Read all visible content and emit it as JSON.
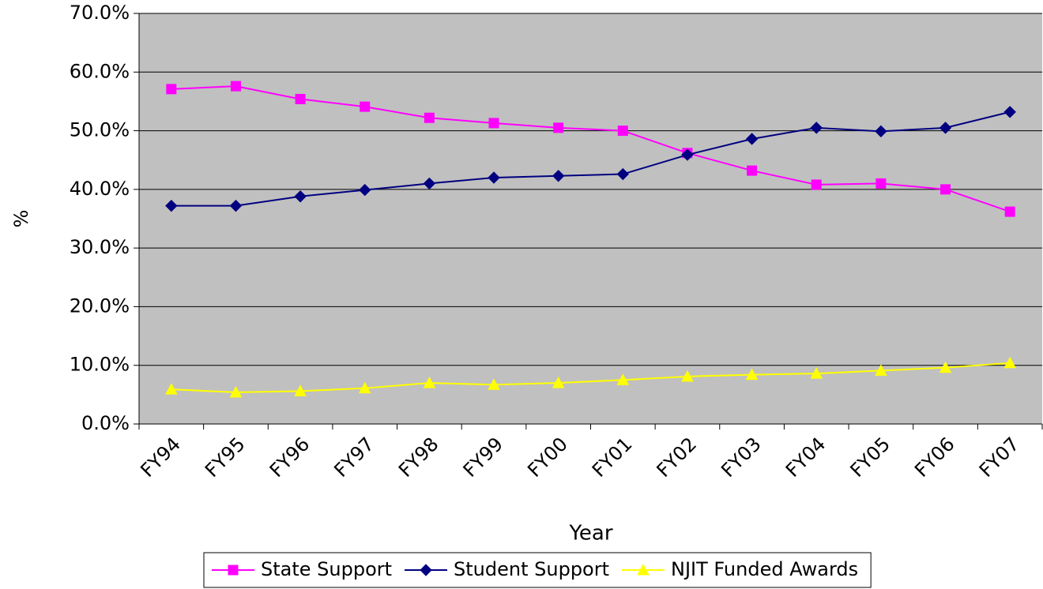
{
  "chart_data": {
    "type": "line",
    "categories": [
      "FY94",
      "FY95",
      "FY96",
      "FY97",
      "FY98",
      "FY99",
      "FY00",
      "FY01",
      "FY02",
      "FY03",
      "FY04",
      "FY05",
      "FY06",
      "FY07"
    ],
    "series": [
      {
        "name": "State Support",
        "color": "#ff00ff",
        "marker": "square",
        "values": [
          57.1,
          57.6,
          55.4,
          54.1,
          52.2,
          51.3,
          50.5,
          50.0,
          46.2,
          43.2,
          40.8,
          41.0,
          40.0,
          36.2
        ]
      },
      {
        "name": "Student Support",
        "color": "#000080",
        "marker": "diamond",
        "values": [
          37.2,
          37.2,
          38.8,
          39.9,
          41.0,
          42.0,
          42.3,
          42.6,
          45.9,
          48.6,
          50.5,
          49.9,
          50.5,
          53.2
        ]
      },
      {
        "name": "NJIT Funded Awards",
        "color": "#ffff00",
        "marker": "triangle",
        "values": [
          5.9,
          5.4,
          5.6,
          6.1,
          7.0,
          6.7,
          7.0,
          7.5,
          8.1,
          8.4,
          8.6,
          9.1,
          9.6,
          10.4
        ]
      }
    ],
    "x_label": "Year",
    "y_label": "%",
    "ylim": [
      0,
      70
    ],
    "yticks": [
      {
        "value": 0,
        "label": "0.0%"
      },
      {
        "value": 10,
        "label": "10.0%"
      },
      {
        "value": 20,
        "label": "20.0%"
      },
      {
        "value": 30,
        "label": "30.0%"
      },
      {
        "value": 40,
        "label": "40.0%"
      },
      {
        "value": 50,
        "label": "50.0%"
      },
      {
        "value": 60,
        "label": "60.0%"
      },
      {
        "value": 70,
        "label": "70.0%"
      }
    ],
    "grid": true,
    "plot_background": "#c0c0c0",
    "legend": "bottom"
  }
}
